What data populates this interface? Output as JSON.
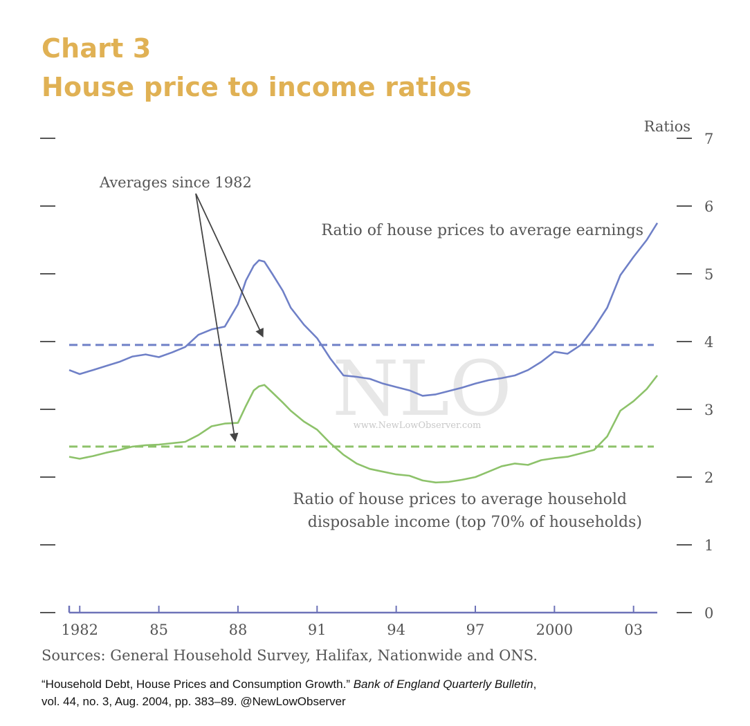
{
  "header": {
    "chart_number": "Chart 3",
    "title": "House price to income ratios"
  },
  "sources": "Sources:  General Household Survey, Halifax, Nationwide and ONS.",
  "citation": {
    "part1": "“Household Debt, House Prices and Consumption Growth.” ",
    "journal": "Bank of England Quarterly Bulletin",
    "part2": ",",
    "line2": "vol. 44, no. 3, Aug. 2004, pp. 383–89. @NewLowObserver"
  },
  "watermark": {
    "big": "NLO",
    "small": "www.NewLowObserver.com"
  },
  "colors": {
    "earnings": "#6f80c7",
    "income": "#8dc26a",
    "axis": "#6d72b8",
    "text": "#555555"
  },
  "chart_data": {
    "type": "line",
    "title": "House price to income ratios",
    "ylabel": "Ratios",
    "xlabel": "",
    "ylim": [
      0,
      7
    ],
    "xlim": [
      1981.6,
      2003.9
    ],
    "yticks": [
      "0",
      "1",
      "2",
      "3",
      "4",
      "5",
      "6",
      "7"
    ],
    "xtick_labels": [
      {
        "x": 1982,
        "label": "1982"
      },
      {
        "x": 1985,
        "label": "85"
      },
      {
        "x": 1988,
        "label": "88"
      },
      {
        "x": 1991,
        "label": "91"
      },
      {
        "x": 1994,
        "label": "94"
      },
      {
        "x": 1997,
        "label": "97"
      },
      {
        "x": 2000,
        "label": "2000"
      },
      {
        "x": 2003,
        "label": "03"
      }
    ],
    "series": [
      {
        "name": "Ratio of house prices to average earnings",
        "label_lines": [
          "Ratio of house prices to average earnings"
        ],
        "average": 3.95,
        "x": [
          1981.6,
          1982.0,
          1982.5,
          1983.0,
          1983.5,
          1984.0,
          1984.5,
          1985.0,
          1985.5,
          1986.0,
          1986.5,
          1987.0,
          1987.5,
          1988.0,
          1988.3,
          1988.6,
          1988.8,
          1989.0,
          1989.3,
          1989.7,
          1990.0,
          1990.5,
          1991.0,
          1991.5,
          1992.0,
          1992.5,
          1993.0,
          1993.5,
          1994.0,
          1994.5,
          1995.0,
          1995.5,
          1996.0,
          1996.5,
          1997.0,
          1997.5,
          1998.0,
          1998.5,
          1999.0,
          1999.5,
          2000.0,
          2000.5,
          2001.0,
          2001.5,
          2002.0,
          2002.5,
          2003.0,
          2003.5,
          2003.9
        ],
        "values": [
          3.58,
          3.52,
          3.58,
          3.64,
          3.7,
          3.78,
          3.81,
          3.77,
          3.84,
          3.92,
          4.1,
          4.18,
          4.22,
          4.55,
          4.9,
          5.12,
          5.2,
          5.18,
          5.0,
          4.75,
          4.5,
          4.25,
          4.05,
          3.75,
          3.5,
          3.48,
          3.45,
          3.38,
          3.33,
          3.28,
          3.2,
          3.22,
          3.27,
          3.32,
          3.38,
          3.43,
          3.46,
          3.5,
          3.58,
          3.7,
          3.85,
          3.82,
          3.95,
          4.2,
          4.5,
          4.98,
          5.25,
          5.5,
          5.75
        ]
      },
      {
        "name": "Ratio of house prices to average household disposable income (top 70% of households)",
        "label_lines": [
          "Ratio of house prices to average household",
          "disposable income (top 70% of households)"
        ],
        "average": 2.45,
        "x": [
          1981.6,
          1982.0,
          1982.5,
          1983.0,
          1983.5,
          1984.0,
          1984.5,
          1985.0,
          1985.5,
          1986.0,
          1986.5,
          1987.0,
          1987.5,
          1988.0,
          1988.3,
          1988.6,
          1988.8,
          1989.0,
          1989.3,
          1989.7,
          1990.0,
          1990.5,
          1991.0,
          1991.5,
          1992.0,
          1992.5,
          1993.0,
          1993.5,
          1994.0,
          1994.5,
          1995.0,
          1995.5,
          1996.0,
          1996.5,
          1997.0,
          1997.5,
          1998.0,
          1998.5,
          1999.0,
          1999.5,
          2000.0,
          2000.5,
          2001.0,
          2001.5,
          2002.0,
          2002.5,
          2003.0,
          2003.5,
          2003.9
        ],
        "values": [
          2.3,
          2.27,
          2.31,
          2.36,
          2.4,
          2.45,
          2.47,
          2.48,
          2.5,
          2.52,
          2.62,
          2.75,
          2.79,
          2.8,
          3.05,
          3.28,
          3.34,
          3.36,
          3.25,
          3.1,
          2.98,
          2.82,
          2.7,
          2.5,
          2.33,
          2.2,
          2.12,
          2.08,
          2.04,
          2.02,
          1.95,
          1.92,
          1.93,
          1.96,
          2.0,
          2.08,
          2.16,
          2.2,
          2.18,
          2.25,
          2.28,
          2.3,
          2.35,
          2.4,
          2.6,
          2.98,
          3.12,
          3.3,
          3.5
        ]
      }
    ],
    "annotations": {
      "averages_label": "Averages since 1982",
      "ratios_label": "Ratios"
    }
  }
}
